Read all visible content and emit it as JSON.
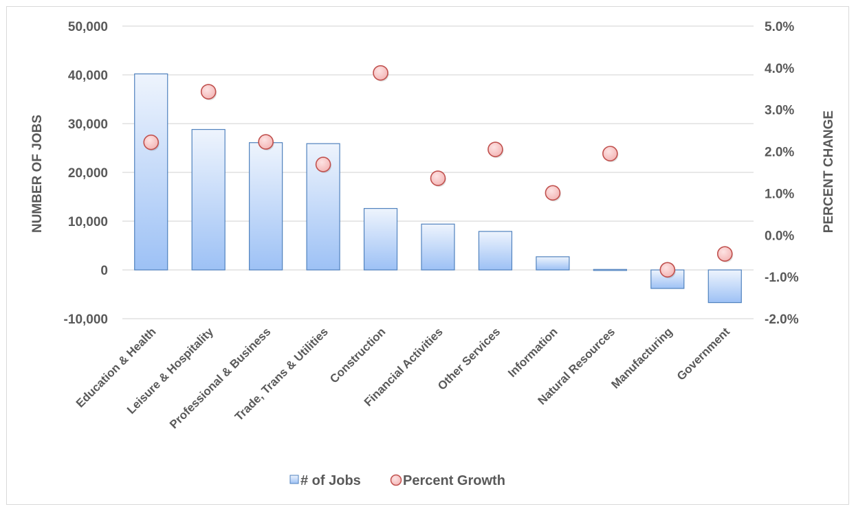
{
  "chart_data": {
    "type": "bar",
    "categories": [
      "Education & Health",
      "Leisure & Hospitality",
      "Professional & Business",
      "Trade, Trans & Utilities",
      "Construction",
      "Financial Activities",
      "Other Services",
      "Information",
      "Natural Resources",
      "Manufacturing",
      "Government"
    ],
    "series": [
      {
        "name": "# of Jobs",
        "type": "bar",
        "axis": "left",
        "values": [
          40200,
          28800,
          26100,
          25900,
          12600,
          9400,
          7900,
          2700,
          100,
          -3800,
          -6700
        ]
      },
      {
        "name": "Percent Growth",
        "type": "scatter",
        "axis": "right",
        "values": [
          2.22,
          3.43,
          2.23,
          1.69,
          3.88,
          1.36,
          2.05,
          1.01,
          1.95,
          -0.83,
          -0.45
        ]
      }
    ],
    "xlabel": "",
    "ylabel": "NUMBER OF JOBS",
    "y2label": "PERCENT CHANGE",
    "ylim": [
      -10000,
      50000
    ],
    "y2lim": [
      -2.0,
      5.0
    ],
    "yticks": [
      "-10,000",
      "0",
      "10,000",
      "20,000",
      "30,000",
      "40,000",
      "50,000"
    ],
    "y2ticks": [
      "-2.0%",
      "-1.0%",
      "0.0%",
      "1.0%",
      "2.0%",
      "3.0%",
      "4.0%",
      "5.0%"
    ],
    "grid": true,
    "legend": "bottom",
    "colors": {
      "bar_top": "#eef4fd",
      "bar_bottom": "#9dc1f5",
      "bar_stroke": "#4f81bd",
      "marker_fill": "#f4b8b8",
      "marker_stroke": "#c0504d",
      "grid": "#d9d9d9",
      "text": "#595959"
    }
  }
}
